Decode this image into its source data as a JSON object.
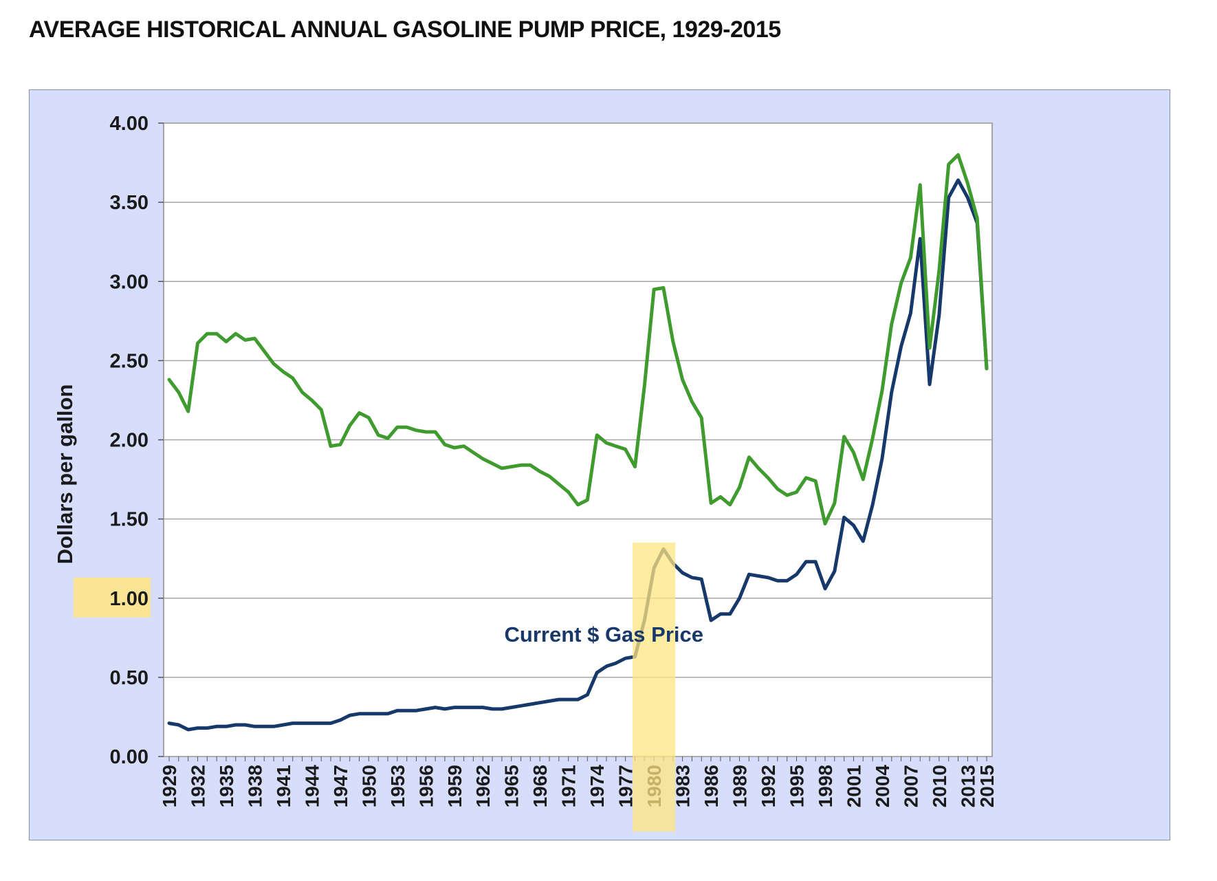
{
  "header": {
    "title": "AVERAGE HISTORICAL ANNUAL GASOLINE PUMP PRICE, 1929-2015"
  },
  "colors": {
    "frame_background": "#d6defb",
    "plot_background": "#ffffff",
    "gridline": "#a6a6a6",
    "current_series": "#17386b",
    "real_series": "#3f9b2e",
    "highlight": "#ffe680"
  },
  "chart_data": {
    "type": "line",
    "title": "",
    "xlabel": "",
    "ylabel": "Dollars per gallon",
    "ylim": [
      0,
      4
    ],
    "yticks": [
      "0.00",
      "0.50",
      "1.00",
      "1.50",
      "2.00",
      "2.50",
      "3.00",
      "3.50",
      "4.00"
    ],
    "xticks": [
      "1929",
      "1932",
      "1935",
      "1938",
      "1941",
      "1944",
      "1947",
      "1950",
      "1953",
      "1956",
      "1959",
      "1962",
      "1965",
      "1968",
      "1971",
      "1974",
      "1977",
      "1980",
      "1983",
      "1986",
      "1989",
      "1992",
      "1995",
      "1998",
      "2001",
      "2004",
      "2007",
      "2010",
      "2013",
      "2015"
    ],
    "grid": true,
    "annotations": [
      {
        "text": "Current $ Gas Price",
        "series": "current"
      }
    ],
    "highlights": [
      {
        "type": "x-band",
        "x": 1980
      },
      {
        "type": "y-tick",
        "y": "1.00"
      }
    ],
    "x": [
      1929,
      1930,
      1931,
      1932,
      1933,
      1934,
      1935,
      1936,
      1937,
      1938,
      1939,
      1940,
      1941,
      1942,
      1943,
      1944,
      1945,
      1946,
      1947,
      1948,
      1949,
      1950,
      1951,
      1952,
      1953,
      1954,
      1955,
      1956,
      1957,
      1958,
      1959,
      1960,
      1961,
      1962,
      1963,
      1964,
      1965,
      1966,
      1967,
      1968,
      1969,
      1970,
      1971,
      1972,
      1973,
      1974,
      1975,
      1976,
      1977,
      1978,
      1979,
      1980,
      1981,
      1982,
      1983,
      1984,
      1985,
      1986,
      1987,
      1988,
      1989,
      1990,
      1991,
      1992,
      1993,
      1994,
      1995,
      1996,
      1997,
      1998,
      1999,
      2000,
      2001,
      2002,
      2003,
      2004,
      2005,
      2006,
      2007,
      2008,
      2009,
      2010,
      2011,
      2012,
      2013,
      2014,
      2015
    ],
    "series": [
      {
        "key": "current",
        "values": [
          0.21,
          0.2,
          0.17,
          0.18,
          0.18,
          0.19,
          0.19,
          0.2,
          0.2,
          0.19,
          0.19,
          0.19,
          0.2,
          0.21,
          0.21,
          0.21,
          0.21,
          0.21,
          0.23,
          0.26,
          0.27,
          0.27,
          0.27,
          0.27,
          0.29,
          0.29,
          0.29,
          0.3,
          0.31,
          0.3,
          0.31,
          0.31,
          0.31,
          0.31,
          0.3,
          0.3,
          0.31,
          0.32,
          0.33,
          0.34,
          0.35,
          0.36,
          0.36,
          0.36,
          0.39,
          0.53,
          0.57,
          0.59,
          0.62,
          0.63,
          0.86,
          1.19,
          1.31,
          1.22,
          1.16,
          1.13,
          1.12,
          0.86,
          0.9,
          0.9,
          1.0,
          1.15,
          1.14,
          1.13,
          1.11,
          1.11,
          1.15,
          1.23,
          1.23,
          1.06,
          1.17,
          1.51,
          1.46,
          1.36,
          1.59,
          1.88,
          2.3,
          2.59,
          2.8,
          3.27,
          2.35,
          2.79,
          3.53,
          3.64,
          3.53,
          3.37,
          2.45
        ]
      },
      {
        "key": "real",
        "values": [
          2.38,
          2.3,
          2.18,
          2.61,
          2.67,
          2.67,
          2.62,
          2.67,
          2.63,
          2.64,
          2.56,
          2.48,
          2.43,
          2.39,
          2.3,
          2.25,
          2.19,
          1.96,
          1.97,
          2.09,
          2.17,
          2.14,
          2.03,
          2.01,
          2.08,
          2.08,
          2.06,
          2.05,
          2.05,
          1.97,
          1.95,
          1.96,
          1.92,
          1.88,
          1.85,
          1.82,
          1.83,
          1.84,
          1.84,
          1.8,
          1.77,
          1.72,
          1.67,
          1.59,
          1.62,
          2.03,
          1.98,
          1.96,
          1.94,
          1.83,
          2.34,
          2.95,
          2.96,
          2.62,
          2.38,
          2.24,
          2.14,
          1.6,
          1.64,
          1.59,
          1.7,
          1.89,
          1.82,
          1.76,
          1.69,
          1.65,
          1.67,
          1.76,
          1.74,
          1.47,
          1.6,
          2.02,
          1.92,
          1.75,
          2.01,
          2.31,
          2.73,
          2.99,
          3.15,
          3.61,
          2.58,
          3.07,
          3.74,
          3.8,
          3.62,
          3.4,
          2.45
        ]
      }
    ]
  }
}
